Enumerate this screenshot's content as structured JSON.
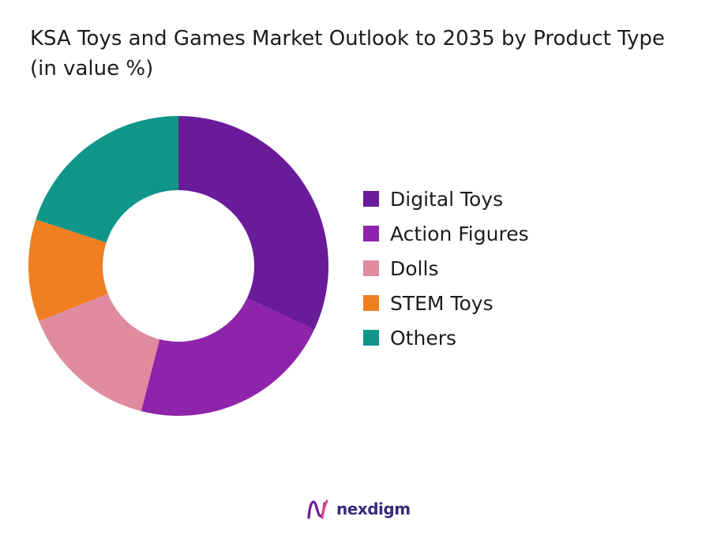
{
  "chart_data": {
    "type": "pie",
    "donut": true,
    "title_lines": [
      "KSA Toys and Games Market Outlook to 2035 by Product Type",
      "(in value %)"
    ],
    "categories": [
      "Digital Toys",
      "Action Figures",
      "Dolls",
      "STEM Toys",
      "Others"
    ],
    "values": [
      32,
      22,
      15,
      11,
      20
    ],
    "colors": [
      "#6a1b9a",
      "#8e24aa",
      "#e08ba0",
      "#f07f22",
      "#0f9688"
    ],
    "legend_position": "right"
  },
  "brand": {
    "name": "nexdigm",
    "logo_icon": "nexdigm-logo-icon",
    "logo_colors": [
      "#6a1b9a",
      "#e24a8b"
    ]
  }
}
